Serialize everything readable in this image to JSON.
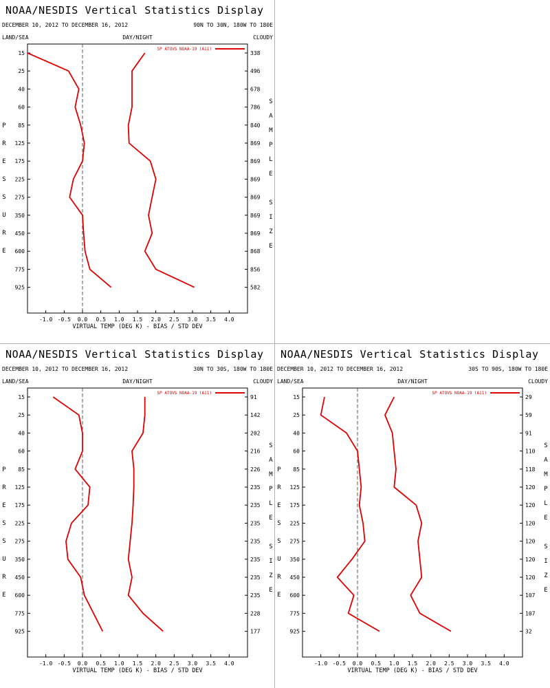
{
  "display_title": "NOAA/NESDIS Vertical Statistics Display",
  "labels": {
    "land_sea": "LAND/SEA",
    "day_night": "DAY/NIGHT",
    "cloudy": "CLOUDY",
    "pressure": "PRESSURE",
    "sample_size": "SAMPLE SIZE",
    "x_axis_title": "VIRTUAL TEMP (DEG K) - BIAS / STD DEV",
    "legend": "SP ATOVS NOAA-19 (A11)"
  },
  "colors": {
    "series": "#dd0000",
    "zero_line": "#555555",
    "divider": "#b0b0b0"
  },
  "chart_data": [
    {
      "type": "line",
      "title": "NOAA/NESDIS Vertical Statistics Display",
      "date_range": "DECEMBER 10, 2012 TO DECEMBER 16, 2012",
      "region": "90N TO 30N, 180W TO 180E",
      "xlabel": "VIRTUAL TEMP (DEG K) - BIAS / STD DEV",
      "ylabel": "PRESSURE",
      "xlim": [
        -1.5,
        4.5
      ],
      "x_ticks": [
        -1.0,
        -0.5,
        0.0,
        0.5,
        1.0,
        1.5,
        2.0,
        2.5,
        3.0,
        3.5,
        4.0
      ],
      "pressure_levels": [
        15,
        25,
        40,
        60,
        85,
        125,
        175,
        225,
        275,
        350,
        450,
        600,
        775,
        925
      ],
      "sample_size": [
        338,
        496,
        678,
        786,
        840,
        869,
        869,
        869,
        869,
        869,
        869,
        868,
        856,
        582
      ],
      "series": [
        {
          "name": "bias",
          "values": [
            -1.5,
            -0.38,
            -0.1,
            -0.2,
            -0.05,
            0.05,
            0.0,
            -0.25,
            -0.35,
            0.0,
            0.03,
            0.07,
            0.2,
            0.78
          ]
        },
        {
          "name": "std_dev",
          "values": [
            1.7,
            1.35,
            1.35,
            1.35,
            1.25,
            1.27,
            1.85,
            2.0,
            1.9,
            1.8,
            1.9,
            1.7,
            2.0,
            3.05
          ]
        }
      ],
      "legend": [
        "SP ATOVS NOAA-19 (A11)"
      ],
      "legend_position": "top-right"
    },
    {
      "type": "line",
      "title": "NOAA/NESDIS Vertical Statistics Display",
      "date_range": "DECEMBER 10, 2012 TO DECEMBER 16, 2012",
      "region": "30N TO 30S, 180W TO 180E",
      "xlabel": "VIRTUAL TEMP (DEG K) - BIAS / STD DEV",
      "ylabel": "PRESSURE",
      "xlim": [
        -1.5,
        4.5
      ],
      "x_ticks": [
        -1.0,
        -0.5,
        0.0,
        0.5,
        1.0,
        1.5,
        2.0,
        2.5,
        3.0,
        3.5,
        4.0
      ],
      "pressure_levels": [
        15,
        25,
        40,
        60,
        85,
        125,
        175,
        225,
        275,
        350,
        450,
        600,
        775,
        925
      ],
      "sample_size": [
        91,
        142,
        202,
        216,
        226,
        235,
        235,
        235,
        235,
        235,
        235,
        235,
        228,
        177
      ],
      "series": [
        {
          "name": "bias",
          "values": [
            -0.8,
            -0.1,
            0.0,
            0.0,
            -0.2,
            0.2,
            0.15,
            -0.3,
            -0.45,
            -0.4,
            -0.05,
            0.05,
            0.3,
            0.55
          ]
        },
        {
          "name": "std_dev",
          "values": [
            1.7,
            1.7,
            1.65,
            1.35,
            1.4,
            1.4,
            1.38,
            1.35,
            1.3,
            1.25,
            1.35,
            1.25,
            1.65,
            2.2
          ]
        }
      ],
      "legend": [
        "SP ATOVS NOAA-19 (A11)"
      ],
      "legend_position": "top-right"
    },
    {
      "type": "line",
      "title": "NOAA/NESDIS Vertical Statistics Display",
      "date_range": "DECEMBER 10, 2012 TO DECEMBER 16, 2012",
      "region": "30S TO 90S, 180W TO 180E",
      "xlabel": "VIRTUAL TEMP (DEG K) - BIAS / STD DEV",
      "ylabel": "PRESSURE",
      "xlim": [
        -1.5,
        4.5
      ],
      "x_ticks": [
        -1.0,
        -0.5,
        0.0,
        0.5,
        1.0,
        1.5,
        2.0,
        2.5,
        3.0,
        3.5,
        4.0
      ],
      "pressure_levels": [
        15,
        25,
        40,
        60,
        85,
        125,
        175,
        225,
        275,
        350,
        450,
        600,
        775,
        925
      ],
      "sample_size": [
        29,
        59,
        91,
        110,
        118,
        120,
        120,
        120,
        120,
        120,
        120,
        107,
        107,
        32
      ],
      "series": [
        {
          "name": "bias",
          "values": [
            -0.9,
            -1.0,
            -0.3,
            0.0,
            0.05,
            0.1,
            0.05,
            0.15,
            0.2,
            -0.15,
            -0.55,
            -0.1,
            -0.25,
            0.6
          ]
        },
        {
          "name": "std_dev",
          "values": [
            1.0,
            0.75,
            0.95,
            1.0,
            1.05,
            1.0,
            1.6,
            1.75,
            1.65,
            1.7,
            1.75,
            1.45,
            1.7,
            2.55
          ]
        }
      ],
      "legend": [
        "SP ATOVS NOAA-19 (A11)"
      ],
      "legend_position": "top-right"
    }
  ]
}
